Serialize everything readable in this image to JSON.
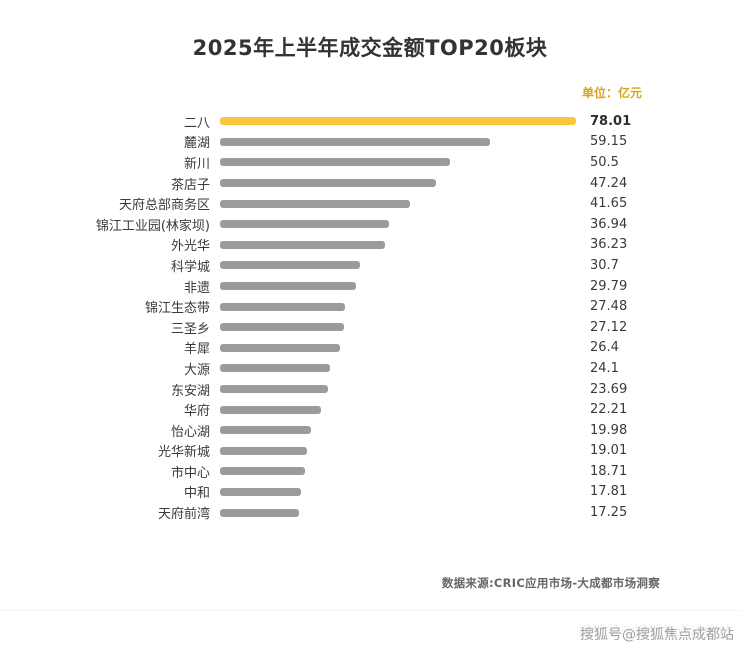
{
  "title": "2025年上半年成交金额TOP20板块",
  "unit_label": "单位：亿元",
  "source": "数据来源:CRIC应用市场-大成都市场洞察",
  "watermark": "搜狐号@搜狐焦点成都站",
  "colors": {
    "highlight": "#F8C63F",
    "bar": "#9b9b9b",
    "unit_text": "#D9A514"
  },
  "chart_data": {
    "type": "bar",
    "orientation": "horizontal",
    "title": "2025年上半年成交金额TOP20板块",
    "xlabel": "",
    "ylabel": "",
    "xlim": [
      0,
      78.01
    ],
    "grid": false,
    "legend": false,
    "highlight_index": 0,
    "categories": [
      "二八",
      "麓湖",
      "新川",
      "茶店子",
      "天府总部商务区",
      "锦江工业园(林家坝)",
      "外光华",
      "科学城",
      "非遗",
      "锦江生态带",
      "三圣乡",
      "羊犀",
      "大源",
      "东安湖",
      "华府",
      "怡心湖",
      "光华新城",
      "市中心",
      "中和",
      "天府前湾"
    ],
    "values": [
      78.01,
      59.15,
      50.5,
      47.24,
      41.65,
      36.94,
      36.23,
      30.7,
      29.79,
      27.48,
      27.12,
      26.4,
      24.1,
      23.69,
      22.21,
      19.98,
      19.01,
      18.71,
      17.81,
      17.25
    ],
    "value_labels": [
      "78.01",
      "59.15",
      "50.5",
      "47.24",
      "41.65",
      "36.94",
      "36.23",
      "30.7",
      "29.79",
      "27.48",
      "27.12",
      "26.4",
      "24.1",
      "23.69",
      "22.21",
      "19.98",
      "19.01",
      "18.71",
      "17.81",
      "17.25"
    ]
  }
}
